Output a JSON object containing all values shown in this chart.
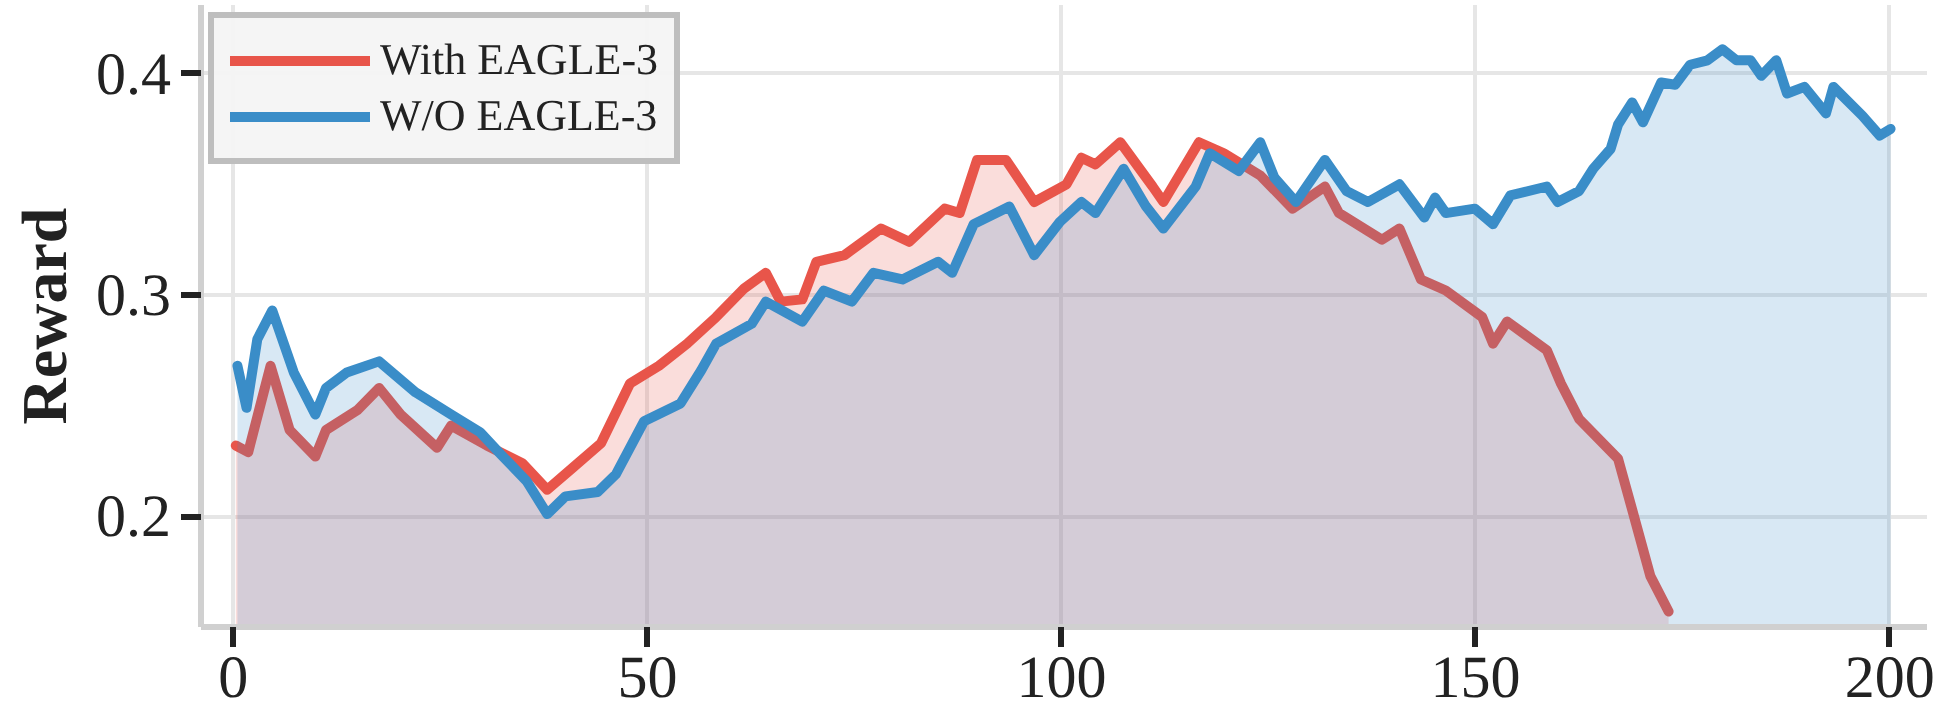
{
  "chart_data": {
    "type": "area",
    "ylabel": "Reward",
    "xlim": [
      -3.9,
      204.5
    ],
    "ylim": [
      0.15,
      0.431
    ],
    "xticks": [
      0,
      50,
      100,
      150,
      200
    ],
    "yticks": [
      0.2,
      0.3,
      0.4
    ],
    "grid": true,
    "legend": "top left",
    "series": [
      {
        "name": "With EAGLE-3",
        "color": "#e8554a",
        "x": [
          0.3,
          1.8,
          4.5,
          6.8,
          9.9,
          11.2,
          15,
          17.6,
          20.2,
          24.6,
          26.3,
          30.6,
          34.9,
          37.9,
          41,
          44.4,
          47.9,
          51.4,
          54.8,
          58.3,
          61.7,
          64.3,
          66.1,
          68.7,
          70.4,
          73.8,
          78.2,
          81.6,
          85.9,
          87.7,
          89.8,
          93.3,
          96.7,
          100.6,
          102.4,
          104.1,
          107.1,
          111,
          112.3,
          116.6,
          119.6,
          124,
          127.9,
          131.8,
          133.5,
          138.7,
          140.8,
          143.4,
          146.4,
          150.8,
          152.1,
          153.8,
          158.6,
          160.3,
          162.5,
          167.2,
          168.9,
          171.1,
          173.3
        ],
        "values": [
          0.232,
          0.229,
          0.268,
          0.239,
          0.227,
          0.239,
          0.248,
          0.258,
          0.246,
          0.231,
          0.241,
          0.232,
          0.224,
          0.212,
          0.222,
          0.233,
          0.26,
          0.268,
          0.278,
          0.29,
          0.303,
          0.31,
          0.297,
          0.298,
          0.315,
          0.318,
          0.33,
          0.324,
          0.339,
          0.337,
          0.361,
          0.361,
          0.342,
          0.35,
          0.362,
          0.359,
          0.369,
          0.349,
          0.342,
          0.369,
          0.364,
          0.354,
          0.339,
          0.349,
          0.337,
          0.325,
          0.33,
          0.307,
          0.302,
          0.29,
          0.278,
          0.288,
          0.275,
          0.26,
          0.244,
          0.226,
          0.203,
          0.173,
          0.157
        ]
      },
      {
        "name": "W/O EAGLE-3",
        "color": "#3a8dc8",
        "x": [
          0.5,
          1.6,
          2.9,
          4.7,
          7.3,
          9.9,
          11.2,
          13.7,
          17.6,
          22,
          26.3,
          29.8,
          32.3,
          35.4,
          37.9,
          40.1,
          44,
          46.2,
          49.6,
          54,
          56.5,
          58.3,
          62.6,
          64.3,
          68.7,
          71.3,
          74.7,
          77.3,
          80.8,
          85.1,
          86.8,
          89.4,
          93.7,
          96.7,
          99.8,
          102.4,
          104.1,
          107.5,
          110.2,
          112.3,
          116.2,
          117.9,
          121.4,
          124,
          125.7,
          128.3,
          131.8,
          134.4,
          137,
          140.8,
          143.8,
          145.1,
          146.4,
          149.9,
          152.1,
          154.2,
          158.6,
          159.9,
          162.5,
          164.2,
          166.3,
          167.2,
          168.9,
          170.2,
          172.4,
          174.1,
          175.9,
          178,
          179.8,
          181.5,
          183.2,
          184.5,
          186.3,
          187.6,
          189.7,
          192.3,
          193.2,
          196.7,
          198.8,
          200.1
        ],
        "values": [
          0.268,
          0.249,
          0.28,
          0.293,
          0.265,
          0.246,
          0.258,
          0.265,
          0.27,
          0.256,
          0.246,
          0.238,
          0.228,
          0.216,
          0.201,
          0.209,
          0.211,
          0.219,
          0.243,
          0.251,
          0.266,
          0.278,
          0.287,
          0.297,
          0.288,
          0.302,
          0.297,
          0.31,
          0.307,
          0.315,
          0.31,
          0.332,
          0.34,
          0.318,
          0.333,
          0.342,
          0.337,
          0.357,
          0.34,
          0.33,
          0.349,
          0.364,
          0.356,
          0.369,
          0.353,
          0.342,
          0.361,
          0.347,
          0.342,
          0.35,
          0.335,
          0.344,
          0.337,
          0.339,
          0.332,
          0.345,
          0.349,
          0.342,
          0.347,
          0.357,
          0.366,
          0.377,
          0.387,
          0.378,
          0.396,
          0.395,
          0.404,
          0.406,
          0.411,
          0.406,
          0.406,
          0.399,
          0.406,
          0.391,
          0.394,
          0.382,
          0.394,
          0.381,
          0.372,
          0.375
        ]
      }
    ]
  }
}
